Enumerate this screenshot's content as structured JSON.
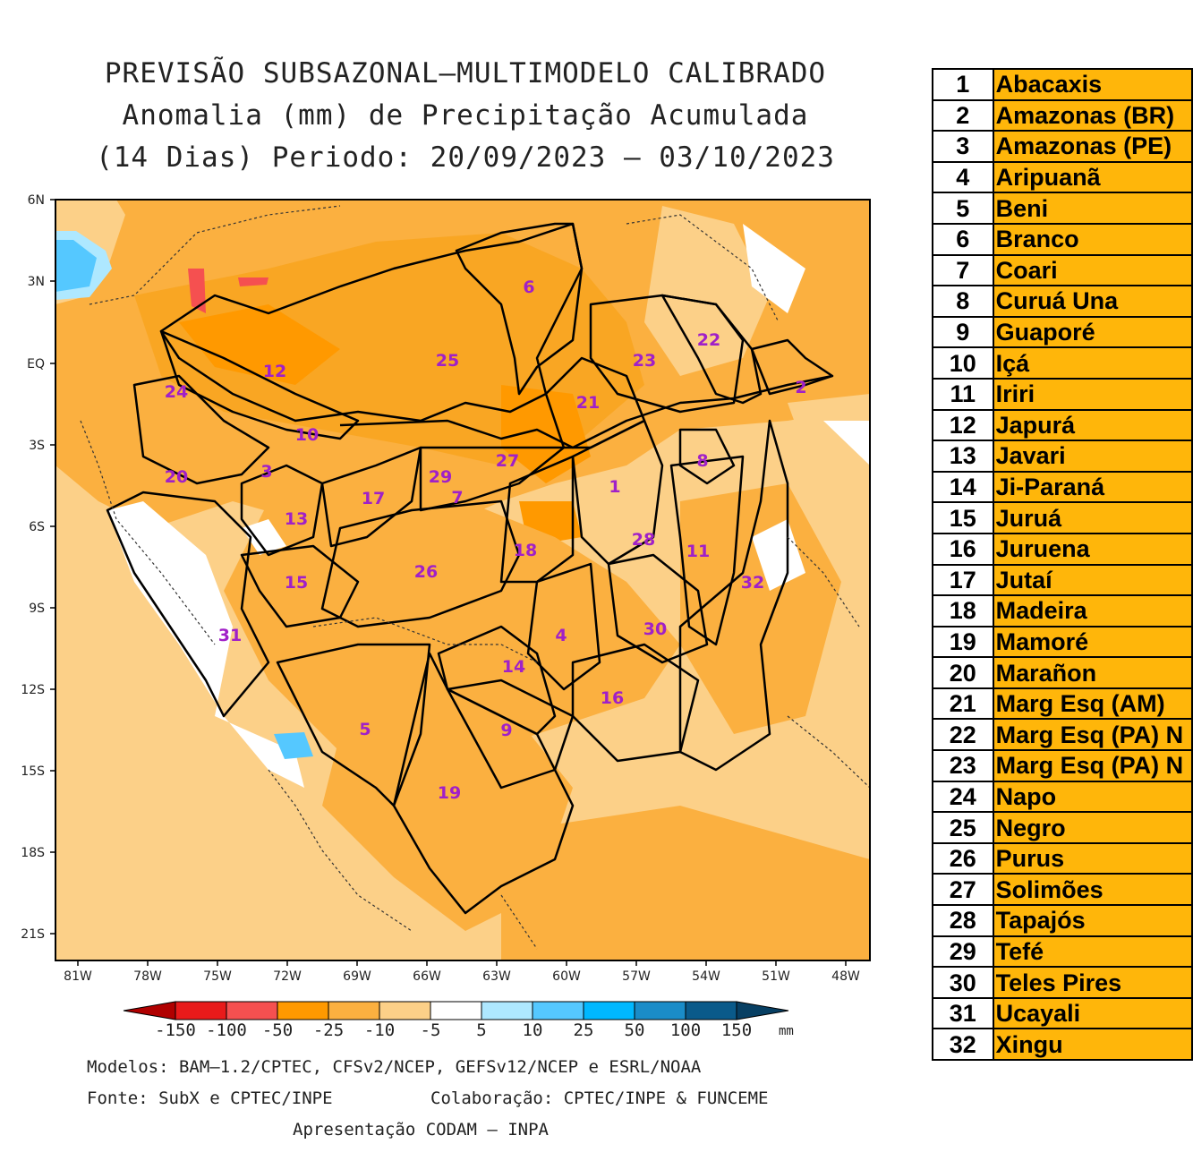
{
  "title": {
    "line1": "PREVISÃO SUBSAZONAL—MULTIMODELO CALIBRADO",
    "line2": "Anomalia (mm) de Precipitação Acumulada",
    "line3": "(14 Dias) Periodo: 20/09/2023 — 03/10/2023"
  },
  "axes": {
    "lat_labels": [
      "6N",
      "3N",
      "EQ",
      "3S",
      "6S",
      "9S",
      "12S",
      "15S",
      "18S",
      "21S"
    ],
    "lon_labels": [
      "81W",
      "78W",
      "75W",
      "72W",
      "69W",
      "66W",
      "63W",
      "60W",
      "57W",
      "54W",
      "51W",
      "48W"
    ]
  },
  "colorbar": {
    "ticks": [
      "-150",
      "-100",
      "-50",
      "-25",
      "-10",
      "-5",
      "5",
      "10",
      "25",
      "50",
      "100",
      "150"
    ],
    "unit": "mm",
    "colors": [
      "#b00000",
      "#e81a1a",
      "#f55050",
      "#ff9900",
      "#fbb040",
      "#fcd088",
      "#ffffff",
      "#aee8ff",
      "#55c8ff",
      "#00b8ff",
      "#1a8cc8",
      "#0a5a8a",
      "#073f63"
    ]
  },
  "footer": {
    "models": "Modelos: BAM—1.2/CPTEC, CFSv2/NCEP, GEFSv12/NCEP e ESRL/NOAA",
    "source": "Fonte: SubX e CPTEC/INPE",
    "collab": "Colaboração: CPTEC/INPE & FUNCEME",
    "presentation": "Apresentação CODAM — INPA"
  },
  "basins": [
    {
      "num": "1",
      "name": "Abacaxis"
    },
    {
      "num": "2",
      "name": "Amazonas (BR)"
    },
    {
      "num": "3",
      "name": "Amazonas (PE)"
    },
    {
      "num": "4",
      "name": "Aripuanã"
    },
    {
      "num": "5",
      "name": "Beni"
    },
    {
      "num": "6",
      "name": "Branco"
    },
    {
      "num": "7",
      "name": "Coari"
    },
    {
      "num": "8",
      "name": "Curuá Una"
    },
    {
      "num": "9",
      "name": "Guaporé"
    },
    {
      "num": "10",
      "name": "Içá"
    },
    {
      "num": "11",
      "name": "Iriri"
    },
    {
      "num": "12",
      "name": "Japurá"
    },
    {
      "num": "13",
      "name": "Javari"
    },
    {
      "num": "14",
      "name": "Ji-Paraná"
    },
    {
      "num": "15",
      "name": "Juruá"
    },
    {
      "num": "16",
      "name": "Juruena"
    },
    {
      "num": "17",
      "name": "Jutaí"
    },
    {
      "num": "18",
      "name": "Madeira"
    },
    {
      "num": "19",
      "name": "Mamoré"
    },
    {
      "num": "20",
      "name": "Marañon"
    },
    {
      "num": "21",
      "name": "Marg Esq (AM)"
    },
    {
      "num": "22",
      "name": "Marg Esq (PA) N"
    },
    {
      "num": "23",
      "name": "Marg Esq (PA) N"
    },
    {
      "num": "24",
      "name": "Napo"
    },
    {
      "num": "25",
      "name": "Negro"
    },
    {
      "num": "26",
      "name": "Purus"
    },
    {
      "num": "27",
      "name": "Solimões"
    },
    {
      "num": "28",
      "name": "Tapajós"
    },
    {
      "num": "29",
      "name": "Tefé"
    },
    {
      "num": "30",
      "name": "Teles Pires"
    },
    {
      "num": "31",
      "name": "Ucayali"
    },
    {
      "num": "32",
      "name": "Xingu"
    }
  ],
  "map_labels": [
    "1",
    "2",
    "3",
    "4",
    "5",
    "6",
    "7",
    "8",
    "9",
    "10",
    "11",
    "12",
    "13",
    "14",
    "15",
    "16",
    "17",
    "18",
    "19",
    "20",
    "21",
    "22",
    "23",
    "24",
    "25",
    "26",
    "27",
    "28",
    "29",
    "30",
    "31",
    "32"
  ]
}
